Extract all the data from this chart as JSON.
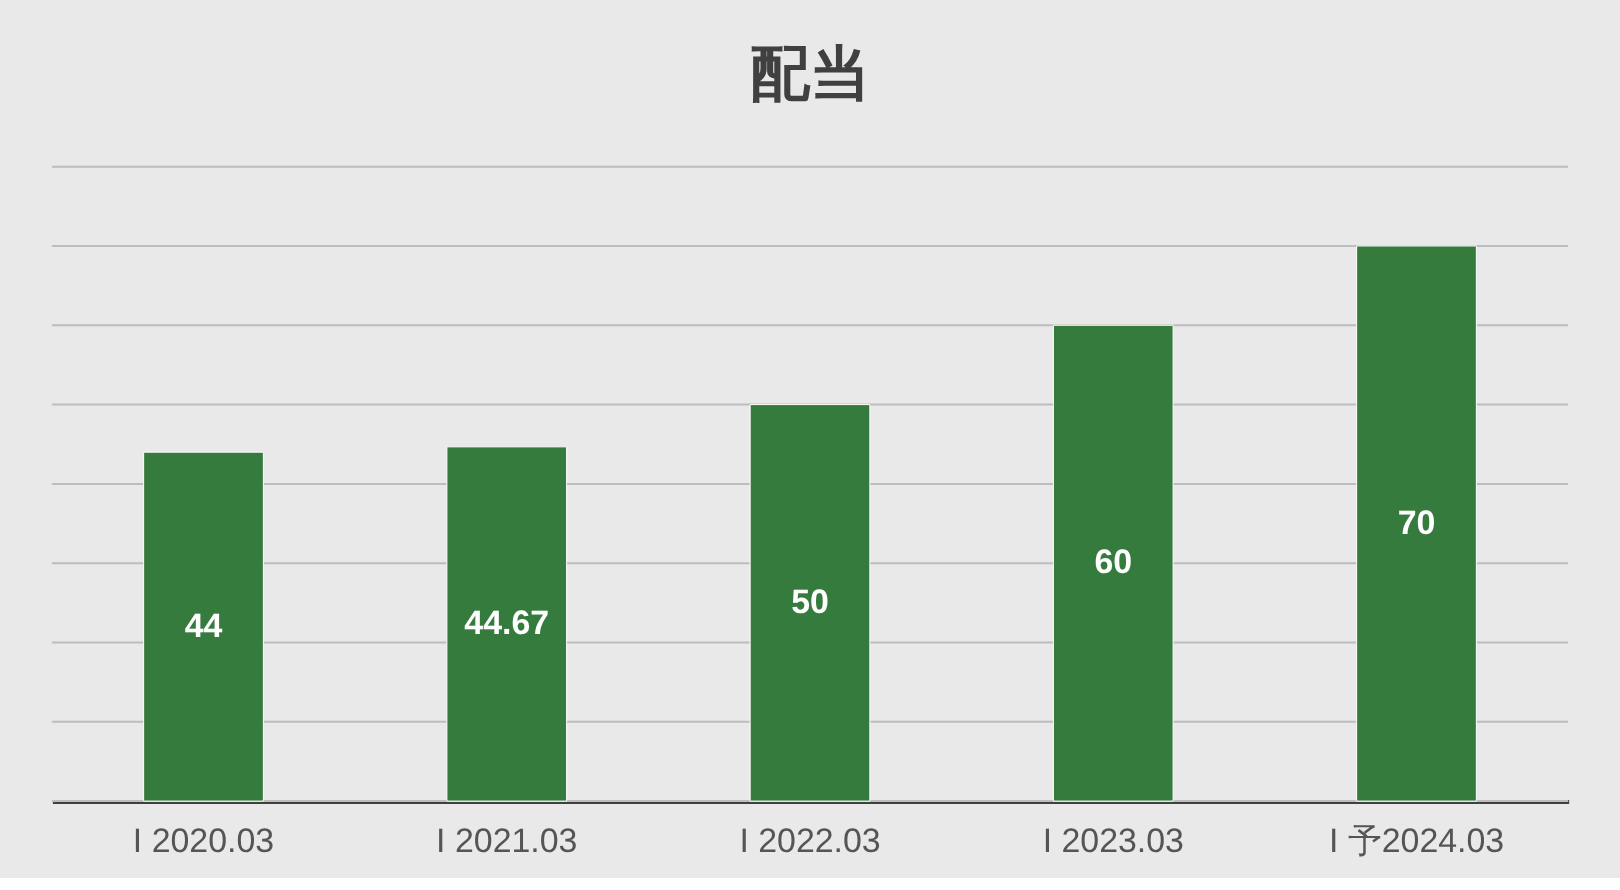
{
  "chart_data": {
    "type": "bar",
    "title": "配当",
    "categories": [
      "I     2020.03",
      "I     2021.03",
      "I     2022.03",
      "I     2023.03",
      "I 予2024.03"
    ],
    "values": [
      44,
      44.67,
      50,
      60,
      70
    ],
    "color": "#367b3e",
    "ylim": [
      0,
      80
    ],
    "yticks": [
      0,
      10,
      20,
      30,
      40,
      50,
      60,
      70,
      80
    ],
    "grid": "y",
    "tick_labels": "x",
    "data_labels": true
  }
}
